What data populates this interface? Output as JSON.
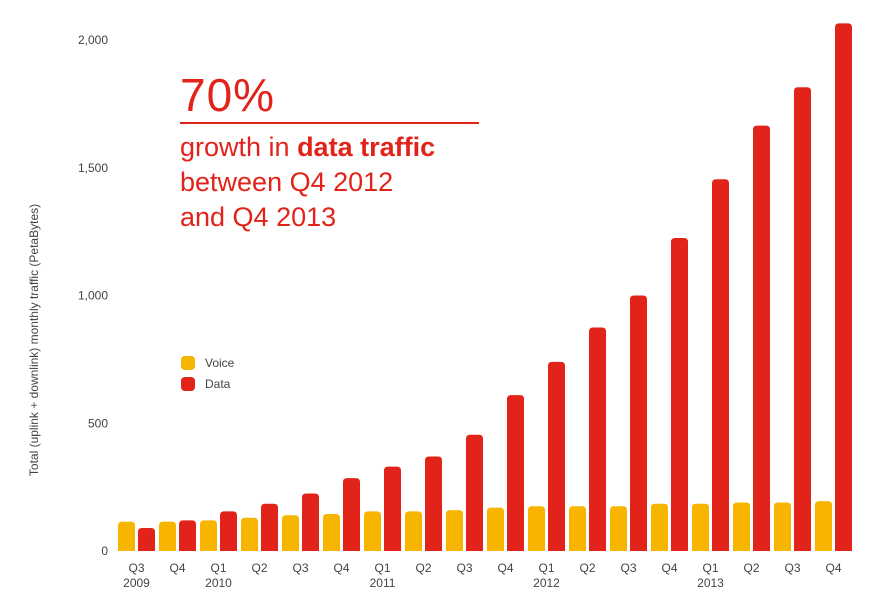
{
  "colors": {
    "voice": "#f7b500",
    "data": "#e2231a",
    "text": "#444444",
    "accent": "#e2231a"
  },
  "callout": {
    "big": "70%",
    "line1_prefix": "growth in ",
    "line1_bold": "data traffic",
    "line2": "between Q4 2012",
    "line3": "and Q4 2013"
  },
  "chart_data": {
    "type": "bar",
    "title": "",
    "xlabel": "",
    "ylabel": "Total (uplink + downlink) monthly traffic (PetaBytes)",
    "ylim": [
      0,
      2000
    ],
    "yticks": [
      0,
      500,
      1000,
      1500,
      2000
    ],
    "ytick_labels": [
      "0",
      "500",
      "1,000",
      "1,500",
      "2,000"
    ],
    "grid": false,
    "legend_position": "left-middle",
    "categories": [
      "Q3",
      "Q4",
      "Q1",
      "Q2",
      "Q3",
      "Q4",
      "Q1",
      "Q2",
      "Q3",
      "Q4",
      "Q1",
      "Q2",
      "Q3",
      "Q4",
      "Q1",
      "Q2",
      "Q3",
      "Q4"
    ],
    "year_labels": [
      "2009",
      "",
      "2010",
      "",
      "",
      "",
      "2011",
      "",
      "",
      "",
      "2012",
      "",
      "",
      "",
      "2013",
      "",
      "",
      ""
    ],
    "series": [
      {
        "name": "Voice",
        "color": "#f7b500",
        "values": [
          115,
          115,
          120,
          130,
          140,
          145,
          155,
          155,
          160,
          170,
          175,
          175,
          175,
          185,
          185,
          190,
          190,
          195
        ]
      },
      {
        "name": "Data",
        "color": "#e2231a",
        "values": [
          90,
          120,
          155,
          185,
          225,
          285,
          330,
          370,
          455,
          610,
          740,
          875,
          1000,
          1225,
          1455,
          1665,
          1815,
          2065
        ]
      }
    ]
  }
}
